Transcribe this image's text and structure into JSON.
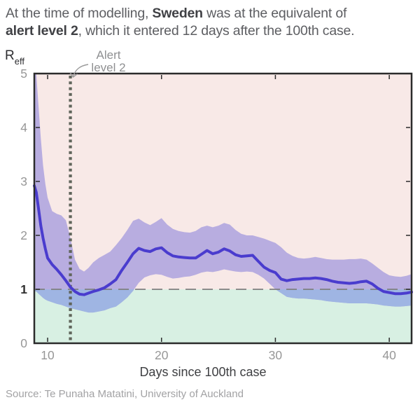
{
  "header": {
    "line1_pre": "At the time of modelling, ",
    "line1_bold": "Sweden",
    "line1_post": " was at the equivalent of",
    "line2_bold": "alert level 2",
    "line2_post": ", which it entered 12 days after the 100th case."
  },
  "y_axis_symbol": {
    "main": "R",
    "sub": "eff"
  },
  "footer": {
    "source": "Source: Te Punaha Matatini, University of Auckland"
  },
  "chart_data": {
    "type": "line",
    "title": "",
    "xlabel": "Days since 100th case",
    "ylabel": "R_eff",
    "xlim": [
      8.83,
      41.96
    ],
    "ylim": [
      0,
      5
    ],
    "xticks": [
      10,
      20,
      30,
      40
    ],
    "yticks": [
      0,
      1,
      2,
      3,
      4,
      5
    ],
    "emphasized_ytick": 1,
    "grid": false,
    "legend": false,
    "threshold": {
      "y": 1,
      "style": "dashed",
      "color": "#7f7f7f"
    },
    "alert_marker": {
      "x": 12,
      "label_line1": "Alert",
      "label_line2": "level 2",
      "style": "dotted-vertical",
      "color": "#60655b"
    },
    "regions": {
      "above_threshold_color": "#f8e9e7",
      "below_threshold_color": "#d8f0e3"
    },
    "band_colors": {
      "over_above_region": "#b8ade0",
      "over_below_region": "#9fb5e3"
    },
    "axis_color": "#2b2b2b",
    "tick_label_color": "#979797",
    "emphasized_tick_color": "#2e2e2e",
    "annotation_arrow_color": "#9a9a9a",
    "x": [
      8.83,
      9.0,
      9.2,
      9.4,
      9.6,
      9.8,
      10.0,
      10.4,
      10.8,
      11.2,
      11.6,
      12.0,
      12.4,
      12.8,
      13.2,
      13.6,
      14.0,
      14.5,
      15.0,
      15.5,
      16.0,
      16.5,
      17.0,
      17.5,
      18.0,
      18.5,
      19.0,
      19.5,
      20.0,
      20.5,
      21.0,
      21.5,
      22.0,
      22.5,
      23.0,
      23.5,
      24.0,
      24.5,
      25.0,
      25.5,
      26.0,
      26.5,
      27.0,
      27.5,
      28.0,
      28.5,
      29.0,
      29.5,
      30.0,
      30.5,
      31.0,
      31.5,
      32.0,
      32.5,
      33.0,
      33.5,
      34.0,
      34.5,
      35.0,
      35.5,
      36.0,
      36.5,
      37.0,
      37.5,
      38.0,
      38.5,
      39.0,
      39.5,
      40.0,
      40.5,
      41.0,
      41.5,
      41.96
    ],
    "series": [
      {
        "name": "Reff median estimate",
        "color": "#4a3cce",
        "y": [
          2.92,
          2.8,
          2.5,
          2.18,
          1.95,
          1.75,
          1.58,
          1.46,
          1.37,
          1.27,
          1.16,
          1.04,
          0.96,
          0.91,
          0.9,
          0.93,
          0.96,
          0.99,
          1.03,
          1.1,
          1.18,
          1.35,
          1.5,
          1.66,
          1.76,
          1.72,
          1.7,
          1.75,
          1.77,
          1.68,
          1.62,
          1.6,
          1.59,
          1.58,
          1.58,
          1.65,
          1.72,
          1.66,
          1.69,
          1.75,
          1.71,
          1.64,
          1.61,
          1.62,
          1.63,
          1.52,
          1.41,
          1.35,
          1.31,
          1.19,
          1.16,
          1.18,
          1.19,
          1.2,
          1.2,
          1.21,
          1.2,
          1.18,
          1.15,
          1.13,
          1.12,
          1.11,
          1.12,
          1.14,
          1.15,
          1.1,
          1.02,
          0.96,
          0.94,
          0.92,
          0.92,
          0.93,
          0.95
        ]
      },
      {
        "name": "credible interval upper",
        "y": [
          5.0,
          5.0,
          4.4,
          3.8,
          3.3,
          2.95,
          2.7,
          2.45,
          2.4,
          2.37,
          2.28,
          1.95,
          1.55,
          1.38,
          1.33,
          1.4,
          1.5,
          1.58,
          1.64,
          1.7,
          1.82,
          1.95,
          2.1,
          2.27,
          2.31,
          2.24,
          2.19,
          2.25,
          2.32,
          2.2,
          2.12,
          2.08,
          2.06,
          2.05,
          2.08,
          2.15,
          2.18,
          2.15,
          2.18,
          2.23,
          2.2,
          2.1,
          2.03,
          2.0,
          2.0,
          1.97,
          1.94,
          1.9,
          1.86,
          1.78,
          1.68,
          1.62,
          1.58,
          1.57,
          1.58,
          1.6,
          1.58,
          1.56,
          1.55,
          1.55,
          1.55,
          1.56,
          1.56,
          1.57,
          1.55,
          1.48,
          1.4,
          1.32,
          1.26,
          1.24,
          1.23,
          1.25,
          1.28
        ]
      },
      {
        "name": "credible interval lower",
        "y": [
          0.97,
          0.96,
          0.92,
          0.88,
          0.84,
          0.81,
          0.79,
          0.76,
          0.73,
          0.71,
          0.68,
          0.65,
          0.63,
          0.61,
          0.59,
          0.57,
          0.57,
          0.59,
          0.61,
          0.65,
          0.68,
          0.76,
          0.85,
          0.97,
          1.12,
          1.22,
          1.26,
          1.28,
          1.27,
          1.23,
          1.2,
          1.21,
          1.23,
          1.24,
          1.27,
          1.31,
          1.33,
          1.32,
          1.34,
          1.37,
          1.35,
          1.33,
          1.32,
          1.33,
          1.32,
          1.27,
          1.2,
          1.1,
          1.0,
          0.93,
          0.86,
          0.84,
          0.83,
          0.83,
          0.82,
          0.81,
          0.8,
          0.78,
          0.77,
          0.76,
          0.75,
          0.74,
          0.74,
          0.74,
          0.74,
          0.73,
          0.72,
          0.7,
          0.69,
          0.68,
          0.68,
          0.69,
          0.7
        ]
      }
    ]
  }
}
